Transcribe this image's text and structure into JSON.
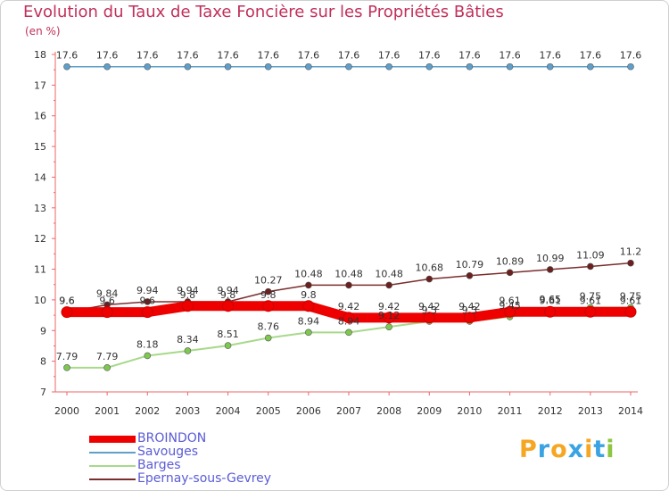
{
  "title": "Evolution du Taux de Taxe Foncière sur les Propriétés Bâties",
  "unit_label": "(en %)",
  "logo": {
    "text": "Proxiti",
    "letters": [
      "P",
      "r",
      "o",
      "x",
      "i",
      "t",
      "i"
    ],
    "colors": [
      "#f5a623",
      "#3aa3e3",
      "#f5a623",
      "#3aa3e3",
      "#f5a623",
      "#3aa3e3",
      "#8dc63f"
    ]
  },
  "chart_data": {
    "type": "line",
    "title": "Evolution du Taux de Taxe Foncière sur les Propriétés Bâties",
    "ylabel": "(en %)",
    "xlabel": "",
    "ylim": [
      7,
      18
    ],
    "yticks": [
      7,
      8,
      9,
      10,
      11,
      12,
      13,
      14,
      15,
      16,
      17,
      18
    ],
    "categories": [
      "2000",
      "2001",
      "2002",
      "2003",
      "2004",
      "2005",
      "2006",
      "2007",
      "2008",
      "2009",
      "2010",
      "2011",
      "2012",
      "2013",
      "2014"
    ],
    "series": [
      {
        "name": "Epernay-sous-Gevrey",
        "color": "#7b2d2d",
        "marker": "#6b1f1f",
        "values": [
          9.6,
          9.84,
          9.94,
          9.94,
          9.94,
          10.27,
          10.48,
          10.48,
          10.48,
          10.68,
          10.79,
          10.89,
          10.99,
          11.09,
          11.2
        ],
        "labels": [
          "9.6",
          "9.84",
          "9.94",
          "9.94",
          "9.94",
          "10.27",
          "10.48",
          "10.48",
          "10.48",
          "10.68",
          "10.79",
          "10.89",
          "10.99",
          "11.09",
          "11.2"
        ]
      },
      {
        "name": "Barges",
        "color": "#a8d98a",
        "marker": "#7ec850",
        "values": [
          7.79,
          7.79,
          8.18,
          8.34,
          8.51,
          8.76,
          8.94,
          8.94,
          9.12,
          9.3,
          9.3,
          9.45,
          9.65,
          9.75,
          9.75
        ],
        "labels": [
          "7.79",
          "7.79",
          "8.18",
          "8.34",
          "8.51",
          "8.76",
          "8.94",
          "8.94",
          "9.12",
          "9.3",
          "9.3",
          "9.45",
          "9.65",
          "9.75",
          "9.75"
        ]
      },
      {
        "name": "Savouges",
        "color": "#5f9fc9",
        "marker": "#5f9fc9",
        "values": [
          17.6,
          17.6,
          17.6,
          17.6,
          17.6,
          17.6,
          17.6,
          17.6,
          17.6,
          17.6,
          17.6,
          17.6,
          17.6,
          17.6,
          17.6
        ],
        "labels": [
          "17.6",
          "17.6",
          "17.6",
          "17.6",
          "17.6",
          "17.6",
          "17.6",
          "17.6",
          "17.6",
          "17.6",
          "17.6",
          "17.6",
          "17.6",
          "17.6",
          "17.6"
        ]
      },
      {
        "name": "BROINDON",
        "color": "#ee0000",
        "marker": "#ee0000",
        "values": [
          9.6,
          9.6,
          9.6,
          9.8,
          9.8,
          9.8,
          9.8,
          9.42,
          9.42,
          9.42,
          9.42,
          9.61,
          9.61,
          9.61,
          9.61
        ],
        "labels": [
          "9.6",
          "9.6",
          "9.6",
          "9.8",
          "9.8",
          "9.8",
          "9.8",
          "9.42",
          "9.42",
          "9.42",
          "9.42",
          "9.61",
          "9.61",
          "9.61",
          "9.61"
        ]
      }
    ],
    "legend": [
      "BROINDON",
      "Savouges",
      "Barges",
      "Epernay-sous-Gevrey"
    ]
  }
}
